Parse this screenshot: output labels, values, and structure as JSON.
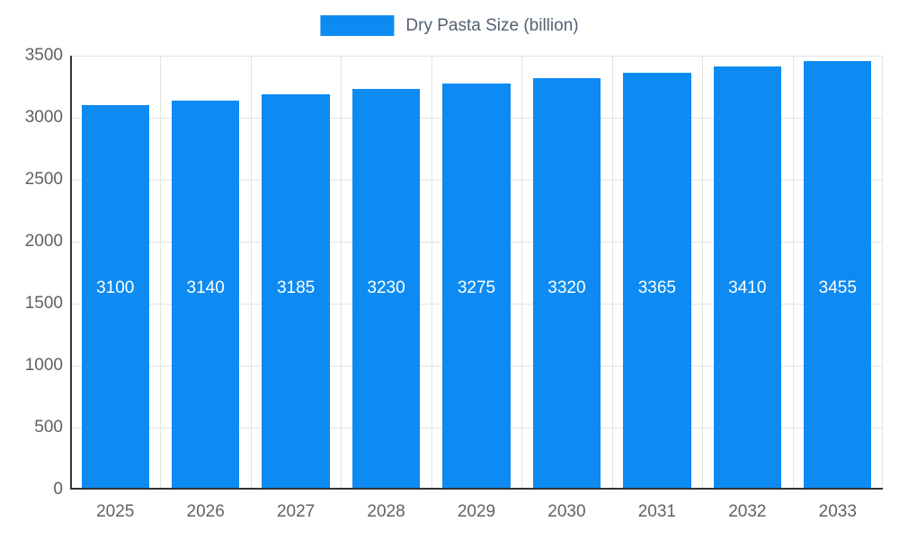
{
  "colors": {
    "bar": "#0d8bf2",
    "grid": "#e3e3e3",
    "axis": "#333333",
    "tick_text": "#616161",
    "title_text": "#546170",
    "value_text": "#ffffff",
    "background": "#ffffff"
  },
  "legend": {
    "label": "Dry Pasta Size (billion)",
    "position": "top-center"
  },
  "chart_data": {
    "type": "bar",
    "title": "Dry Pasta Size (billion)",
    "categories": [
      "2025",
      "2026",
      "2027",
      "2028",
      "2029",
      "2030",
      "2031",
      "2032",
      "2033"
    ],
    "values": [
      3100,
      3140,
      3185,
      3230,
      3275,
      3320,
      3365,
      3410,
      3455
    ],
    "xlabel": "",
    "ylabel": "",
    "ylim": [
      0,
      3500
    ],
    "ytick_step": 500,
    "yticks": [
      0,
      500,
      1000,
      1500,
      2000,
      2500,
      3000,
      3500
    ],
    "grid": true,
    "legend_position": "top-center",
    "bar_color": "#0d8bf2",
    "value_labels": true,
    "value_label_color": "#ffffff"
  }
}
